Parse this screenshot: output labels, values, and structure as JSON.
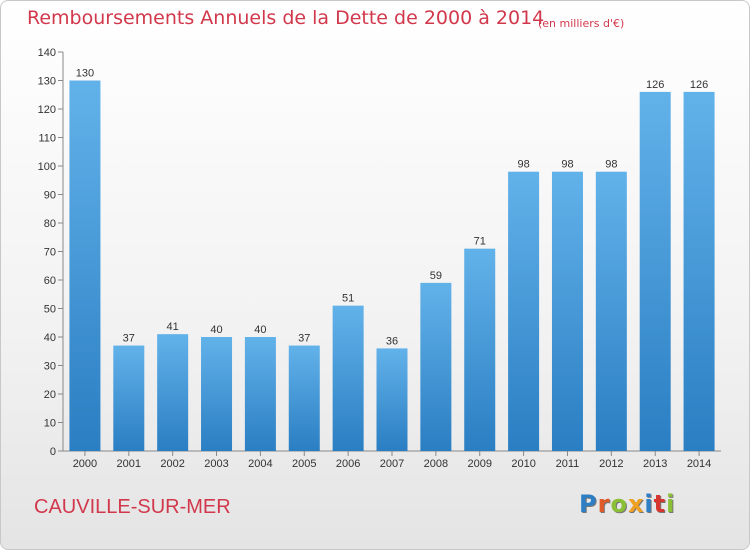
{
  "header": {
    "title": "Remboursements Annuels de la Dette de 2000 à 2014",
    "unit": "(en milliers d'€)"
  },
  "footer": {
    "commune": "CAUVILLE-SUR-MER",
    "brand": "Proxiti"
  },
  "colors": {
    "bar_top": "#62b2ea",
    "bar_bottom": "#2a7ec2",
    "accent_text": "#d2384c",
    "brand_letters": [
      "#2d7ec4",
      "#e05a2a",
      "#8abf36",
      "#f0a020",
      "#2d7ec4",
      "#d6362e",
      "#8abf36"
    ]
  },
  "chart_data": {
    "type": "bar",
    "categories": [
      "2000",
      "2001",
      "2002",
      "2003",
      "2004",
      "2005",
      "2006",
      "2007",
      "2008",
      "2009",
      "2010",
      "2011",
      "2012",
      "2013",
      "2014"
    ],
    "values": [
      130,
      37,
      41,
      40,
      40,
      37,
      51,
      36,
      59,
      71,
      98,
      98,
      98,
      126,
      126
    ],
    "ylim": [
      0,
      140
    ],
    "yticks": [
      0,
      10,
      20,
      30,
      40,
      50,
      60,
      70,
      80,
      90,
      100,
      110,
      120,
      130,
      140
    ],
    "grid": false,
    "data_labels": true
  }
}
